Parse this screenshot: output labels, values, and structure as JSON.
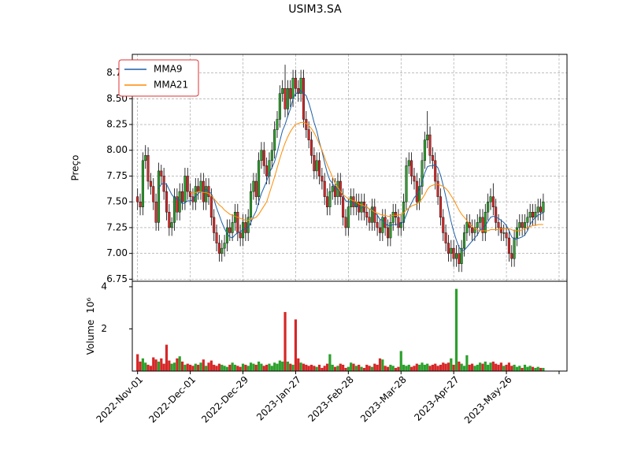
{
  "chart_data": [
    {
      "type": "candlestick",
      "title": "USIM3.SA",
      "ylabel": "Preço",
      "open": [
        7.55,
        7.5,
        7.45,
        7.9,
        7.95,
        7.7,
        7.65,
        7.5,
        7.3,
        7.8,
        7.75,
        7.6,
        7.4,
        7.25,
        7.3,
        7.55,
        7.4,
        7.6,
        7.5,
        7.75,
        7.6,
        7.55,
        7.5,
        7.65,
        7.6,
        7.7,
        7.5,
        7.65,
        7.55,
        7.35,
        7.2,
        7.1,
        7.0,
        7.05,
        7.1,
        7.25,
        7.2,
        7.3,
        7.4,
        7.2,
        7.15,
        7.3,
        7.2,
        7.35,
        7.6,
        7.7,
        7.55,
        7.9,
        8.0,
        7.85,
        7.75,
        7.9,
        8.0,
        8.2,
        8.3,
        8.55,
        8.6,
        8.4,
        8.6,
        8.5,
        8.7,
        8.6,
        8.55,
        8.7,
        8.3,
        8.2,
        8.1,
        7.95,
        7.8,
        7.9,
        7.75,
        7.7,
        7.55,
        7.45,
        7.6,
        7.65,
        7.55,
        7.7,
        7.55,
        7.35,
        7.25,
        7.45,
        7.55,
        7.45,
        7.5,
        7.4,
        7.5,
        7.4,
        7.35,
        7.3,
        7.45,
        7.3,
        7.25,
        7.2,
        7.35,
        7.25,
        7.15,
        7.3,
        7.4,
        7.35,
        7.25,
        7.3,
        7.5,
        7.85,
        7.9,
        7.75,
        7.7,
        7.5,
        7.65,
        7.9,
        8.1,
        8.15,
        7.95,
        7.9,
        7.7,
        7.55,
        7.35,
        7.2,
        7.1,
        7.0,
        7.05,
        6.95,
        7.0,
        6.9,
        7.05,
        7.2,
        7.3,
        7.25,
        7.2,
        7.25,
        7.3,
        7.35,
        7.2,
        7.4,
        7.5,
        7.55,
        7.45,
        7.3,
        7.25,
        7.2,
        7.2,
        7.15,
        7.0,
        6.95,
        7.15,
        7.25,
        7.3,
        7.25,
        7.3,
        7.35,
        7.4,
        7.35,
        7.4,
        7.45,
        7.4
      ],
      "high": [
        7.63,
        7.58,
        7.98,
        8.05,
        8.03,
        7.78,
        7.73,
        7.58,
        7.88,
        7.86,
        7.83,
        7.68,
        7.48,
        7.35,
        7.63,
        7.63,
        7.68,
        7.68,
        7.83,
        7.83,
        7.68,
        7.63,
        7.73,
        7.73,
        7.78,
        7.78,
        7.73,
        7.73,
        7.63,
        7.43,
        7.28,
        7.18,
        7.13,
        7.18,
        7.33,
        7.33,
        7.38,
        7.48,
        7.48,
        7.28,
        7.38,
        7.38,
        7.43,
        7.68,
        7.78,
        7.78,
        7.98,
        8.08,
        8.08,
        7.93,
        7.98,
        8.08,
        8.28,
        8.38,
        8.63,
        8.68,
        8.83,
        8.68,
        8.68,
        8.78,
        8.78,
        8.68,
        8.78,
        8.78,
        8.38,
        8.28,
        8.18,
        8.03,
        7.98,
        7.98,
        7.83,
        7.78,
        7.63,
        7.68,
        7.73,
        7.73,
        7.78,
        7.78,
        7.63,
        7.43,
        7.53,
        7.63,
        7.63,
        7.58,
        7.58,
        7.58,
        7.58,
        7.48,
        7.43,
        7.53,
        7.53,
        7.38,
        7.33,
        7.43,
        7.43,
        7.33,
        7.38,
        7.48,
        7.48,
        7.43,
        7.38,
        7.58,
        7.93,
        7.98,
        7.98,
        7.83,
        7.78,
        7.73,
        7.98,
        8.18,
        8.38,
        8.23,
        8.03,
        7.98,
        7.78,
        7.63,
        7.43,
        7.28,
        7.18,
        7.13,
        7.13,
        7.08,
        7.08,
        7.13,
        7.28,
        7.38,
        7.38,
        7.33,
        7.33,
        7.38,
        7.43,
        7.43,
        7.48,
        7.58,
        7.63,
        7.68,
        7.53,
        7.38,
        7.33,
        7.28,
        7.28,
        7.23,
        7.08,
        7.23,
        7.33,
        7.38,
        7.38,
        7.38,
        7.43,
        7.48,
        7.48,
        7.48,
        7.53,
        7.53,
        7.58
      ],
      "low": [
        7.42,
        7.37,
        7.37,
        7.82,
        7.62,
        7.57,
        7.42,
        7.22,
        7.22,
        7.67,
        7.52,
        7.32,
        7.17,
        7.17,
        7.22,
        7.32,
        7.32,
        7.42,
        7.42,
        7.52,
        7.47,
        7.42,
        7.42,
        7.52,
        7.52,
        7.42,
        7.42,
        7.47,
        7.27,
        7.12,
        7.02,
        6.92,
        6.92,
        6.97,
        7.02,
        7.12,
        7.12,
        7.22,
        7.12,
        7.07,
        7.07,
        7.12,
        7.12,
        7.27,
        7.52,
        7.47,
        7.47,
        7.82,
        7.77,
        7.67,
        7.67,
        7.82,
        7.92,
        8.12,
        8.22,
        8.47,
        8.32,
        8.32,
        8.42,
        8.42,
        8.52,
        8.47,
        8.47,
        8.22,
        8.12,
        8.02,
        7.87,
        7.72,
        7.72,
        7.67,
        7.62,
        7.47,
        7.37,
        7.37,
        7.52,
        7.47,
        7.47,
        7.47,
        7.27,
        7.17,
        7.17,
        7.37,
        7.37,
        7.37,
        7.32,
        7.32,
        7.32,
        7.27,
        7.22,
        7.22,
        7.22,
        7.17,
        7.12,
        7.12,
        7.17,
        7.07,
        7.07,
        7.22,
        7.27,
        7.17,
        7.17,
        7.22,
        7.42,
        7.77,
        7.67,
        7.62,
        7.42,
        7.42,
        7.57,
        7.82,
        8.02,
        7.87,
        7.82,
        7.62,
        7.47,
        7.27,
        7.12,
        7.02,
        6.92,
        6.92,
        6.87,
        6.87,
        6.82,
        6.82,
        6.97,
        7.12,
        7.17,
        7.12,
        7.12,
        7.17,
        7.22,
        7.12,
        7.12,
        7.32,
        7.42,
        7.37,
        7.22,
        7.17,
        7.12,
        7.12,
        7.07,
        6.92,
        6.87,
        6.87,
        7.07,
        7.17,
        7.17,
        7.17,
        7.22,
        7.27,
        7.27,
        7.27,
        7.32,
        7.32,
        7.32
      ],
      "close": [
        7.5,
        7.45,
        7.9,
        7.95,
        7.7,
        7.65,
        7.5,
        7.3,
        7.8,
        7.75,
        7.6,
        7.4,
        7.25,
        7.3,
        7.55,
        7.4,
        7.6,
        7.5,
        7.75,
        7.6,
        7.55,
        7.5,
        7.65,
        7.6,
        7.7,
        7.5,
        7.65,
        7.55,
        7.35,
        7.2,
        7.1,
        7.0,
        7.05,
        7.1,
        7.25,
        7.2,
        7.3,
        7.4,
        7.2,
        7.15,
        7.3,
        7.2,
        7.35,
        7.6,
        7.7,
        7.55,
        7.9,
        8.0,
        7.85,
        7.75,
        7.9,
        8.0,
        8.2,
        8.3,
        8.55,
        8.6,
        8.4,
        8.6,
        8.5,
        8.7,
        8.6,
        8.55,
        8.7,
        8.3,
        8.2,
        8.1,
        7.95,
        7.8,
        7.9,
        7.75,
        7.7,
        7.55,
        7.45,
        7.6,
        7.65,
        7.55,
        7.7,
        7.55,
        7.35,
        7.25,
        7.45,
        7.55,
        7.45,
        7.5,
        7.4,
        7.5,
        7.4,
        7.35,
        7.3,
        7.45,
        7.3,
        7.25,
        7.2,
        7.35,
        7.25,
        7.15,
        7.3,
        7.4,
        7.35,
        7.25,
        7.3,
        7.5,
        7.85,
        7.9,
        7.75,
        7.7,
        7.5,
        7.65,
        7.9,
        8.1,
        8.15,
        7.95,
        7.9,
        7.7,
        7.55,
        7.35,
        7.2,
        7.1,
        7.0,
        7.05,
        6.95,
        7.0,
        6.9,
        7.05,
        7.2,
        7.3,
        7.25,
        7.2,
        7.25,
        7.3,
        7.35,
        7.2,
        7.4,
        7.5,
        7.55,
        7.45,
        7.3,
        7.25,
        7.2,
        7.2,
        7.15,
        7.0,
        6.95,
        7.15,
        7.25,
        7.3,
        7.25,
        7.3,
        7.35,
        7.4,
        7.35,
        7.4,
        7.45,
        7.4,
        7.5
      ],
      "up_color": "#2ca02c",
      "down_color": "#d62728",
      "edge_color": "#000000",
      "series": [
        {
          "name": "MMA9",
          "color": "#1f5fa8",
          "values": [
            null,
            null,
            null,
            null,
            null,
            null,
            null,
            null,
            7.63,
            7.67,
            7.68,
            7.67,
            7.62,
            7.57,
            7.54,
            7.52,
            7.52,
            7.48,
            7.49,
            7.51,
            7.51,
            7.52,
            7.55,
            7.58,
            7.6,
            7.6,
            7.62,
            7.6,
            7.58,
            7.52,
            7.44,
            7.37,
            7.3,
            7.24,
            7.19,
            7.16,
            7.15,
            7.18,
            7.2,
            7.21,
            7.23,
            7.24,
            7.25,
            7.3,
            7.36,
            7.41,
            7.5,
            7.58,
            7.64,
            7.7,
            7.78,
            7.83,
            7.89,
            7.98,
            8.09,
            8.19,
            8.25,
            8.33,
            8.4,
            8.5,
            8.55,
            8.56,
            8.58,
            8.55,
            8.53,
            8.46,
            8.37,
            8.27,
            8.19,
            8.08,
            7.99,
            7.88,
            7.78,
            7.71,
            7.68,
            7.63,
            7.62,
            7.6,
            7.56,
            7.51,
            7.5,
            7.5,
            7.48,
            7.46,
            7.44,
            7.44,
            7.45,
            7.45,
            7.43,
            7.43,
            7.4,
            7.37,
            7.33,
            7.32,
            7.29,
            7.27,
            7.27,
            7.28,
            7.28,
            7.28,
            7.29,
            7.31,
            7.37,
            7.44,
            7.49,
            7.54,
            7.57,
            7.62,
            7.69,
            7.78,
            7.84,
            7.85,
            7.85,
            7.86,
            7.83,
            7.76,
            7.66,
            7.55,
            7.43,
            7.31,
            7.21,
            7.13,
            7.06,
            7.03,
            7.03,
            7.06,
            7.09,
            7.12,
            7.15,
            7.18,
            7.23,
            7.24,
            7.27,
            7.31,
            7.35,
            7.36,
            7.35,
            7.34,
            7.32,
            7.3,
            7.27,
            7.22,
            7.16,
            7.14,
            7.14,
            7.15,
            7.16,
            7.18,
            7.22,
            7.28,
            7.32,
            7.35,
            7.37,
            7.38,
            7.4
          ]
        },
        {
          "name": "MMA21",
          "color": "#ff8c00",
          "values": [
            null,
            null,
            null,
            null,
            null,
            null,
            null,
            null,
            null,
            null,
            null,
            null,
            null,
            null,
            null,
            null,
            null,
            null,
            null,
            null,
            7.59,
            7.59,
            7.59,
            7.6,
            7.6,
            7.59,
            7.59,
            7.58,
            7.56,
            7.53,
            7.5,
            7.47,
            7.45,
            7.42,
            7.4,
            7.38,
            7.37,
            7.36,
            7.35,
            7.34,
            7.33,
            7.32,
            7.32,
            7.33,
            7.34,
            7.35,
            7.38,
            7.42,
            7.46,
            7.5,
            7.58,
            7.66,
            7.74,
            7.83,
            7.92,
            8.0,
            8.07,
            8.13,
            8.18,
            8.22,
            8.25,
            8.26,
            8.27,
            8.27,
            8.26,
            8.24,
            8.21,
            8.17,
            8.12,
            8.06,
            8.0,
            7.93,
            7.86,
            7.8,
            7.74,
            7.68,
            7.64,
            7.6,
            7.57,
            7.55,
            7.53,
            7.52,
            7.51,
            7.5,
            7.48,
            7.47,
            7.46,
            7.45,
            7.43,
            7.42,
            7.4,
            7.39,
            7.38,
            7.37,
            7.37,
            7.36,
            7.36,
            7.37,
            7.37,
            7.37,
            7.38,
            7.39,
            7.42,
            7.44,
            7.46,
            7.47,
            7.48,
            7.5,
            7.53,
            7.57,
            7.62,
            7.65,
            7.66,
            7.67,
            7.67,
            7.66,
            7.65,
            7.63,
            7.6,
            7.56,
            7.52,
            7.47,
            7.42,
            7.38,
            7.35,
            7.32,
            7.28,
            7.26,
            7.24,
            7.23,
            7.22,
            7.22,
            7.22,
            7.22,
            7.23,
            7.23,
            7.23,
            7.23,
            7.24,
            7.24,
            7.24,
            7.24,
            7.23,
            7.22,
            7.22,
            7.22,
            7.23,
            7.24,
            7.25,
            7.26,
            7.27,
            7.27,
            7.28,
            7.28,
            7.28
          ]
        }
      ],
      "xlim": [
        -2,
        163
      ],
      "ylim": [
        6.73,
        8.93
      ],
      "yticks": [
        6.75,
        {
          "value": 7.0,
          "label": "7.00"
        },
        7.25,
        {
          "value": 7.5,
          "label": "7.50"
        },
        7.75,
        {
          "value": 8.0,
          "label": "8.00"
        },
        8.25,
        {
          "value": 8.5,
          "label": "8.50"
        },
        8.75
      ],
      "grid": true,
      "legend": "upper left"
    },
    {
      "type": "bar",
      "ylabel": "Volume",
      "offset_label": "10⁶",
      "values": [
        800000,
        450000,
        600000,
        400000,
        300000,
        250000,
        650000,
        550000,
        450000,
        600000,
        350000,
        1250000,
        500000,
        350000,
        400000,
        600000,
        700000,
        450000,
        300000,
        350000,
        300000,
        250000,
        350000,
        300000,
        400000,
        550000,
        250000,
        400000,
        500000,
        300000,
        250000,
        350000,
        300000,
        250000,
        200000,
        300000,
        400000,
        300000,
        250000,
        200000,
        350000,
        300000,
        250000,
        400000,
        350000,
        300000,
        450000,
        350000,
        250000,
        300000,
        350000,
        250000,
        400000,
        350000,
        500000,
        450000,
        2800000,
        450000,
        350000,
        300000,
        2450000,
        600000,
        400000,
        350000,
        300000,
        250000,
        300000,
        250000,
        200000,
        300000,
        150000,
        250000,
        350000,
        800000,
        300000,
        200000,
        250000,
        350000,
        300000,
        150000,
        200000,
        400000,
        350000,
        250000,
        300000,
        200000,
        150000,
        300000,
        250000,
        200000,
        350000,
        300000,
        600000,
        550000,
        250000,
        200000,
        300000,
        250000,
        150000,
        200000,
        950000,
        300000,
        250000,
        300000,
        200000,
        250000,
        350000,
        300000,
        400000,
        300000,
        350000,
        250000,
        300000,
        350000,
        250000,
        300000,
        400000,
        350000,
        400000,
        600000,
        300000,
        3900000,
        450000,
        350000,
        250000,
        750000,
        300000,
        350000,
        250000,
        300000,
        400000,
        350000,
        450000,
        300000,
        400000,
        450000,
        350000,
        300000,
        400000,
        250000,
        300000,
        400000,
        250000,
        300000,
        200000,
        250000,
        150000,
        300000,
        200000,
        250000,
        200000,
        150000,
        200000,
        150000,
        150000
      ],
      "xlim": [
        -2,
        163
      ],
      "ylim": [
        0,
        4260000
      ],
      "yticks": [
        {
          "value": 2000000,
          "label": "2"
        },
        {
          "value": 4000000,
          "label": "4"
        }
      ],
      "xticks": [
        {
          "value": 0,
          "label": "2022-Nov-01"
        },
        {
          "value": 20,
          "label": "2022-Dec-01"
        },
        {
          "value": 40,
          "label": "2022-Dec-29"
        },
        {
          "value": 60,
          "label": "2023-Jan-27"
        },
        {
          "value": 80,
          "label": "2023-Feb-28"
        },
        {
          "value": 100,
          "label": "2023-Mar-28"
        },
        {
          "value": 120,
          "label": "2023-Apr-27"
        },
        {
          "value": 140,
          "label": "2023-May-26"
        },
        {
          "value": 160,
          "label": null
        }
      ]
    }
  ]
}
